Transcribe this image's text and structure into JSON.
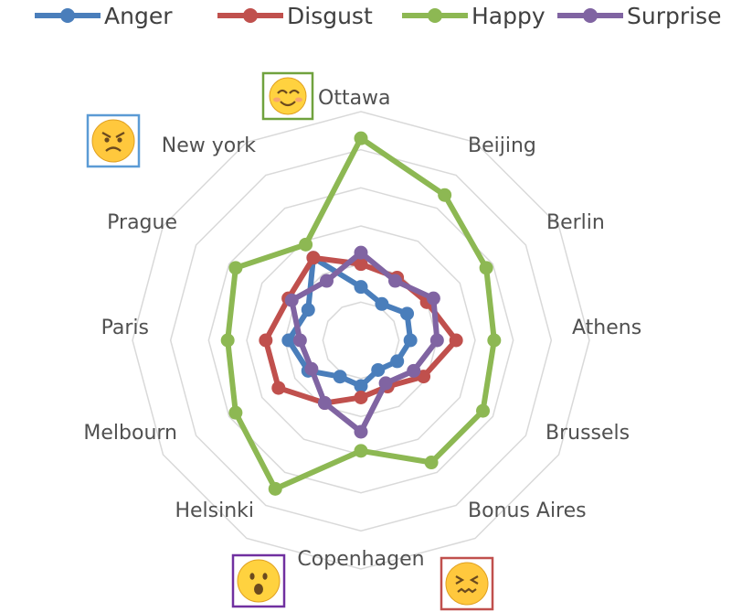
{
  "chart_data": {
    "type": "radar",
    "categories": [
      "Ottawa",
      "Beijing",
      "Berlin",
      "Athens",
      "Brussels",
      "Bonus Aires",
      "Copenhagen",
      "Helsinki",
      "Melbourn",
      "Paris",
      "Prague",
      "New york"
    ],
    "series": [
      {
        "name": "Anger",
        "color": "#4a7ebb",
        "values": [
          1.4,
          1.1,
          1.4,
          1.3,
          1.1,
          0.9,
          1.2,
          1.1,
          1.6,
          1.9,
          1.6,
          2.5
        ]
      },
      {
        "name": "Disgust",
        "color": "#c0504d",
        "values": [
          2.0,
          1.9,
          2.0,
          2.5,
          1.9,
          1.4,
          1.5,
          1.9,
          2.5,
          2.5,
          2.2,
          2.5
        ]
      },
      {
        "name": "Happy",
        "color": "#8db853",
        "values": [
          5.3,
          4.4,
          3.8,
          3.5,
          3.7,
          3.7,
          2.9,
          4.5,
          3.8,
          3.5,
          3.8,
          2.9
        ]
      },
      {
        "name": "Surprise",
        "color": "#8064a2",
        "values": [
          2.3,
          1.8,
          2.2,
          2.0,
          1.6,
          1.3,
          2.4,
          1.9,
          1.5,
          1.6,
          2.1,
          1.8
        ]
      }
    ],
    "rlim": [
      0,
      6
    ],
    "grid": true,
    "legend": "top"
  },
  "emoji_badges": [
    {
      "category": "Ottawa",
      "emoji": "happy-face",
      "border": "#70a23e",
      "fill": "#ffd23f"
    },
    {
      "category": "New york",
      "emoji": "angry-face",
      "border": "#5b9bd5",
      "fill": "#ffc83d"
    },
    {
      "category": "Copenhagen",
      "emoji": "surprised-face",
      "border": "#7030a0",
      "fill": "#ffd23f"
    },
    {
      "category": "Bonus Aires",
      "emoji": "confounded-face",
      "border": "#c0504d",
      "fill": "#ffc83d"
    }
  ]
}
